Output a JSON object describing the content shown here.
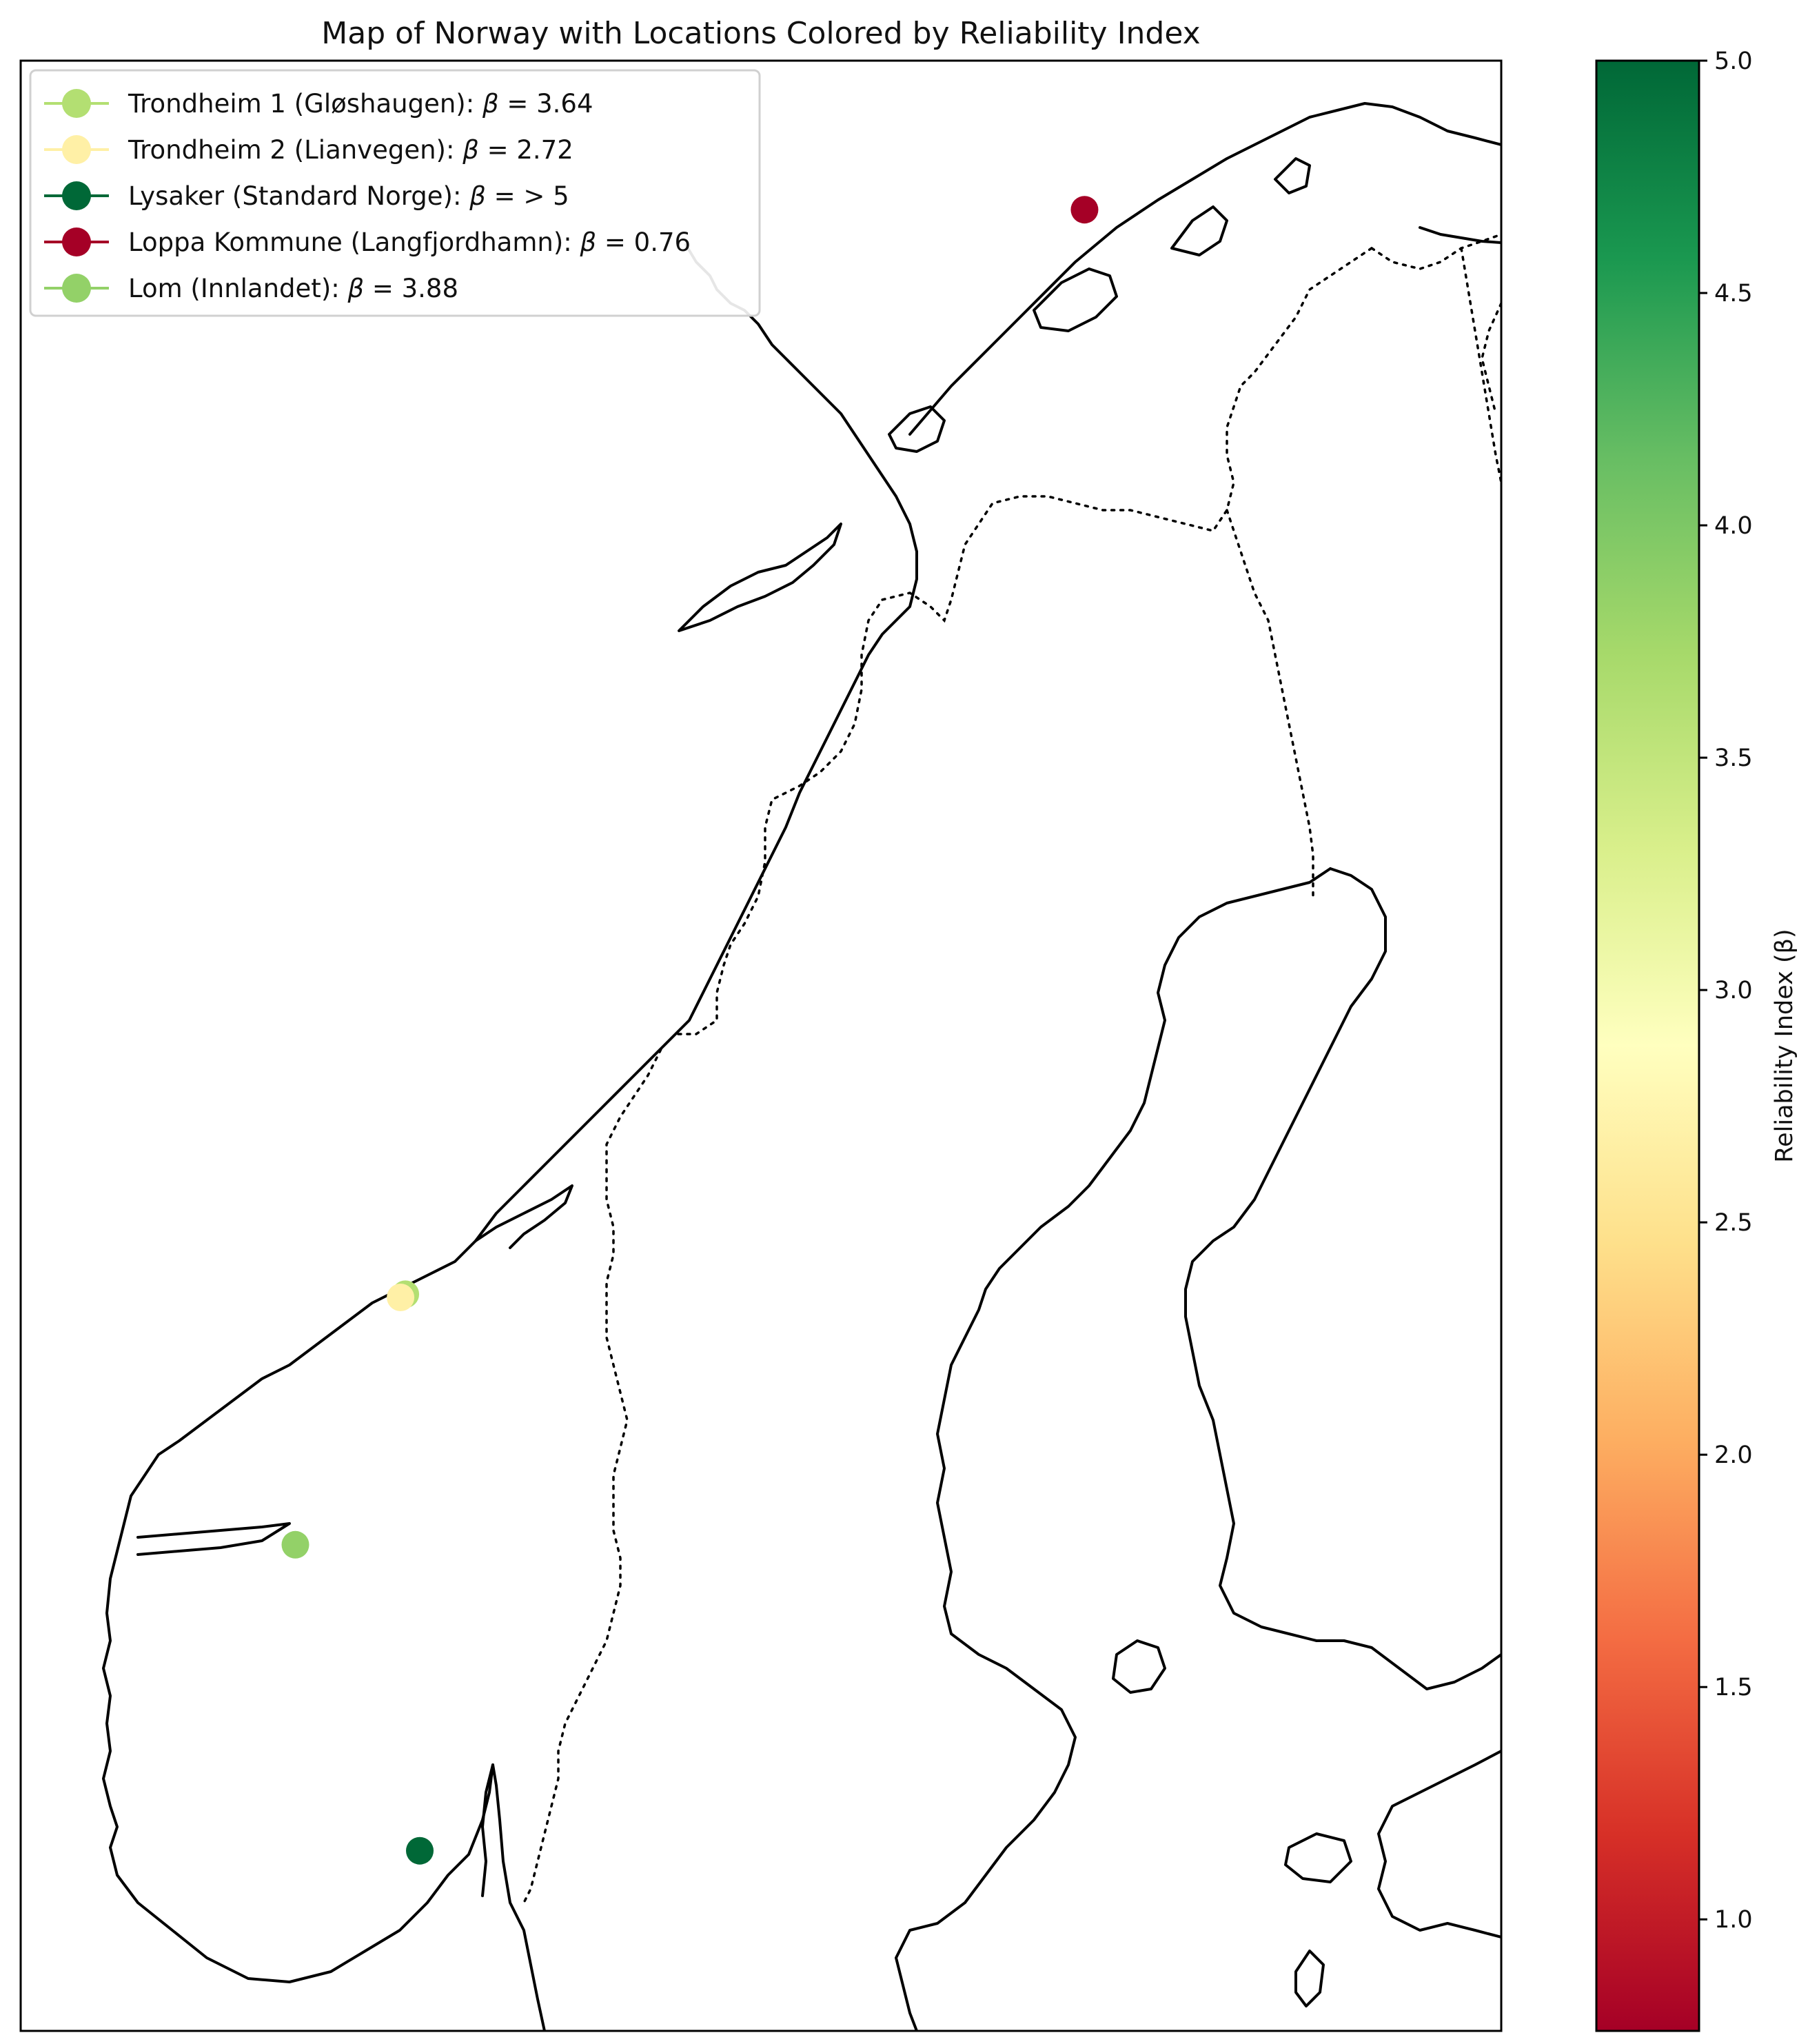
{
  "title": "Map of Norway with Locations Colored by Reliability Index",
  "colorbar": {
    "label": "Reliability Index (β)",
    "ticks": [
      "1.0",
      "1.5",
      "2.0",
      "2.5",
      "3.0",
      "3.5",
      "4.0",
      "4.5",
      "5.0"
    ],
    "range": [
      0.76,
      5.0
    ],
    "colormap": "RdYlGn",
    "stops": [
      "#a50026",
      "#d73027",
      "#f46d43",
      "#fdae61",
      "#fee08b",
      "#ffffbf",
      "#d9ef8b",
      "#a6d96a",
      "#66bd63",
      "#1a9850",
      "#006837"
    ]
  },
  "locations": [
    {
      "name": "Trondheim 1 (Gløshaugen)",
      "beta": 3.64,
      "beta_label": "3.64",
      "color": "#b3df72",
      "lat": 63.42,
      "lon": 10.4
    },
    {
      "name": "Trondheim 2 (Lianvegen)",
      "beta": 2.72,
      "beta_label": "2.72",
      "color": "#fff0a6",
      "lat": 63.4,
      "lon": 10.32
    },
    {
      "name": "Lysaker (Standard Norge)",
      "beta": 5.0,
      "beta_label": "> 5",
      "color": "#006837",
      "lat": 59.91,
      "lon": 10.64
    },
    {
      "name": "Loppa Kommune (Langfjordhamn)",
      "beta": 0.76,
      "beta_label": "0.76",
      "color": "#a50026",
      "lat": 70.26,
      "lon": 21.7
    },
    {
      "name": "Lom (Innlandet)",
      "beta": 3.88,
      "beta_label": "3.88",
      "color": "#93d168",
      "lat": 61.84,
      "lon": 8.57
    }
  ],
  "legend_entries": [
    {
      "prefix": "Trondheim 1 (Gløshaugen): ",
      "symbol": "β",
      "rest": " = 3.64"
    },
    {
      "prefix": "Trondheim 2 (Lianvegen): ",
      "symbol": "β",
      "rest": " = 2.72"
    },
    {
      "prefix": "Lysaker (Standard Norge): ",
      "symbol": "β",
      "rest": " = > 5"
    },
    {
      "prefix": "Loppa Kommune (Langfjordhamn): ",
      "symbol": "β",
      "rest": " = 0.76"
    },
    {
      "prefix": "Lom (Innlandet): ",
      "symbol": "β",
      "rest": " = 3.88"
    }
  ],
  "legend_placement": "top-left",
  "map_features": {
    "coastlines": true,
    "borders": "dotted"
  }
}
